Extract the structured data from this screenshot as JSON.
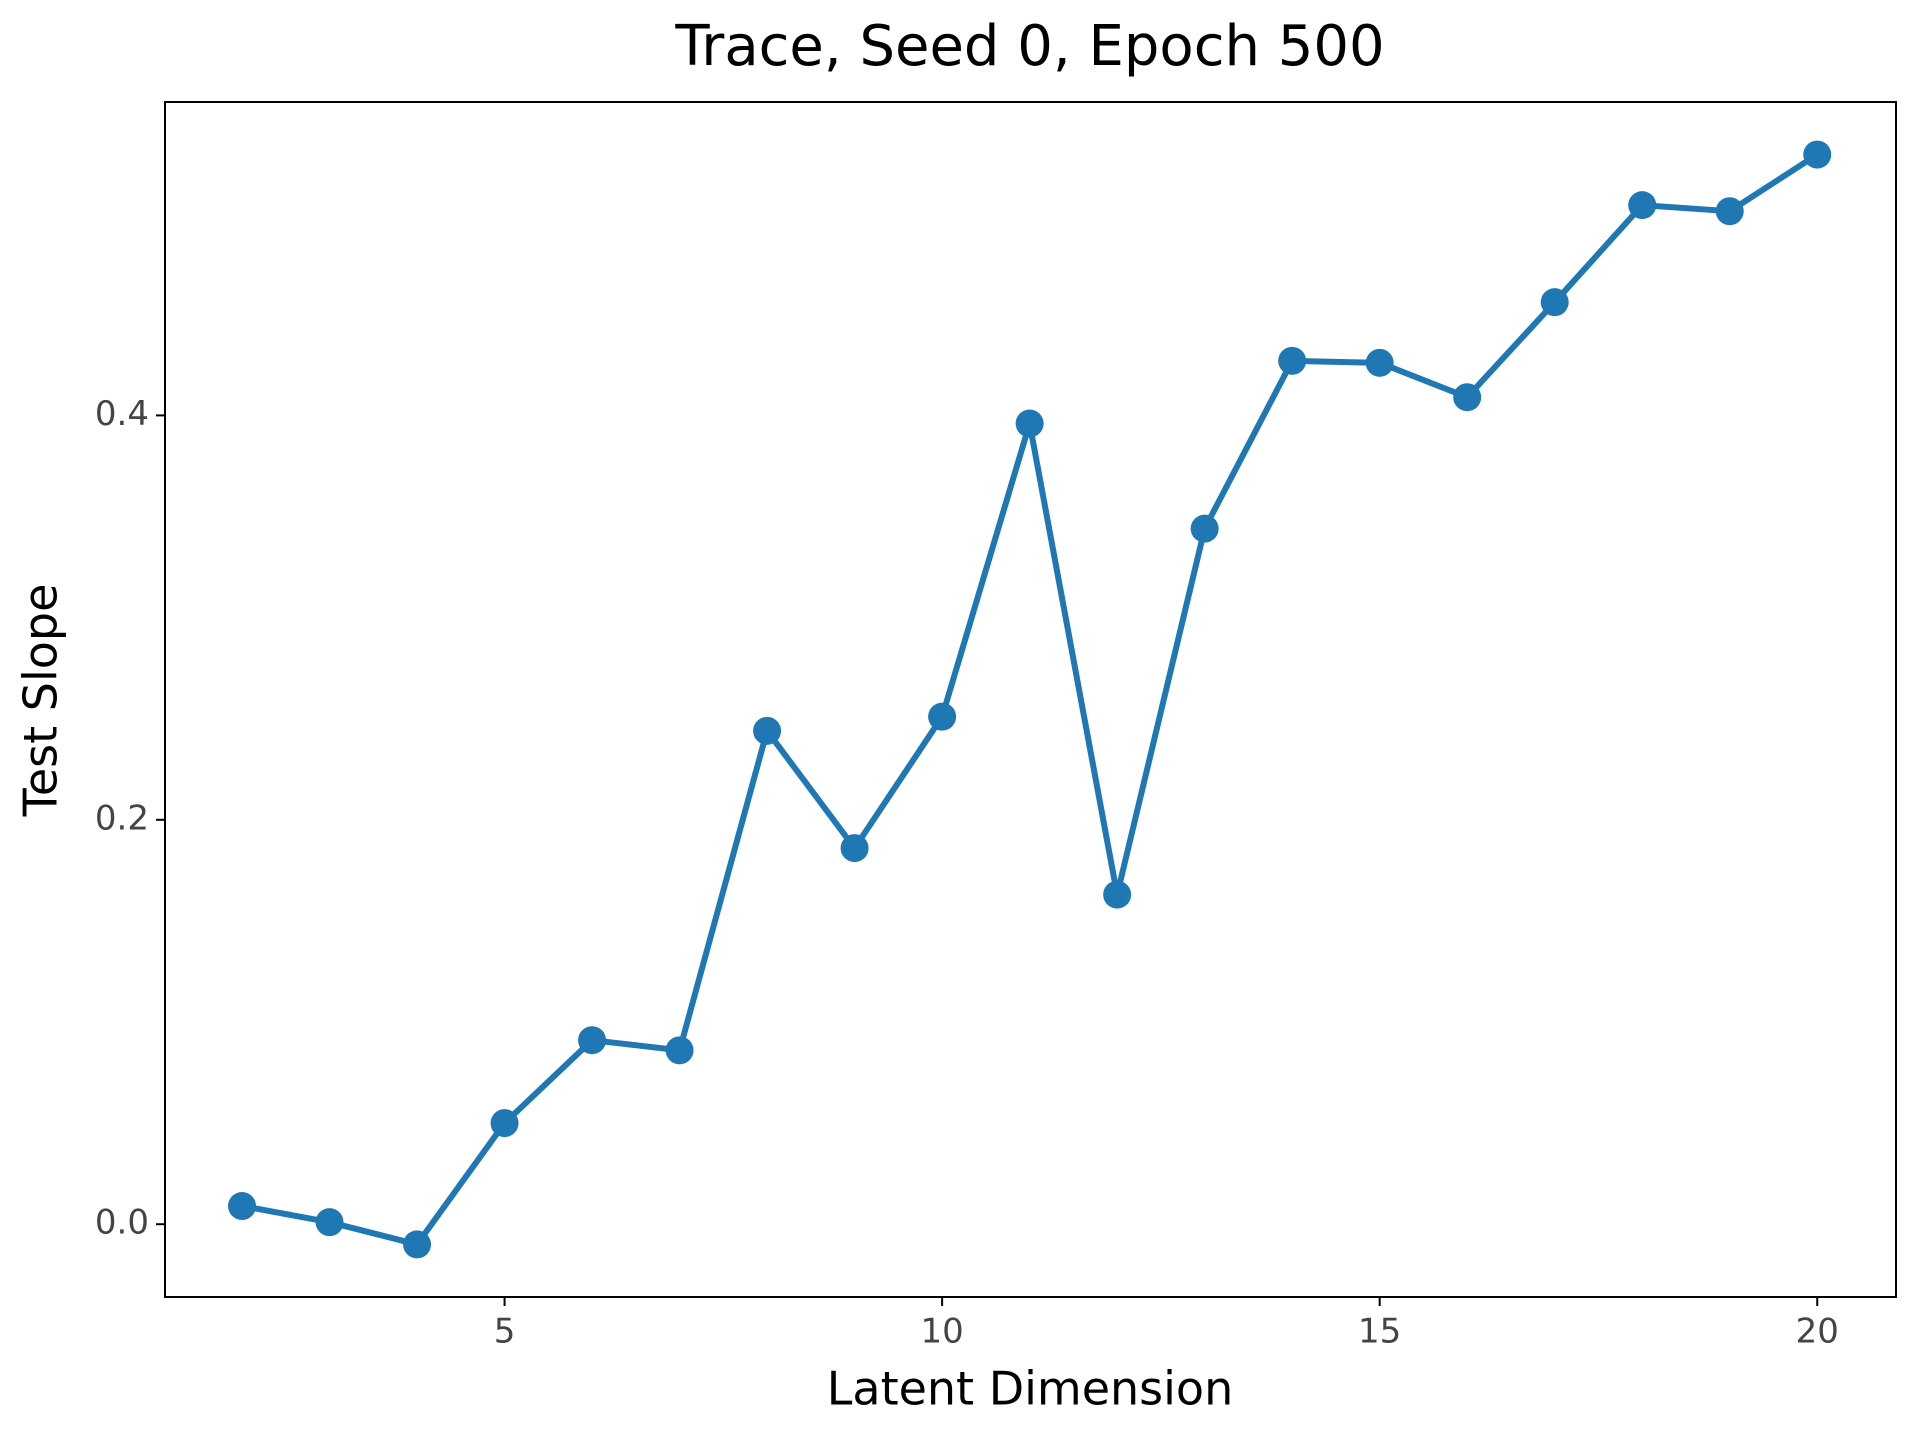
{
  "chart_data": {
    "type": "line",
    "title": "Trace, Seed 0, Epoch 500",
    "x_label": "Latent Dimension",
    "y_label": "Test Slope",
    "x": [
      2,
      3,
      4,
      5,
      6,
      7,
      8,
      9,
      10,
      11,
      12,
      13,
      14,
      15,
      16,
      17,
      18,
      19,
      20
    ],
    "series": [
      {
        "name": "Test Slope",
        "color": "#1f77b4",
        "values": [
          0.009,
          0.001,
          -0.01,
          0.05,
          0.091,
          0.086,
          0.244,
          0.186,
          0.251,
          0.396,
          0.163,
          0.344,
          0.427,
          0.426,
          0.409,
          0.456,
          0.504,
          0.501,
          0.529
        ]
      }
    ],
    "xlim": [
      1.12,
      20.9
    ],
    "ylim": [
      -0.036,
      0.555
    ],
    "xticks": [
      5,
      10,
      15,
      20
    ],
    "yticks": [
      {
        "value": 0,
        "label": "0.0"
      },
      0.2,
      0.4
    ],
    "grid": false
  }
}
